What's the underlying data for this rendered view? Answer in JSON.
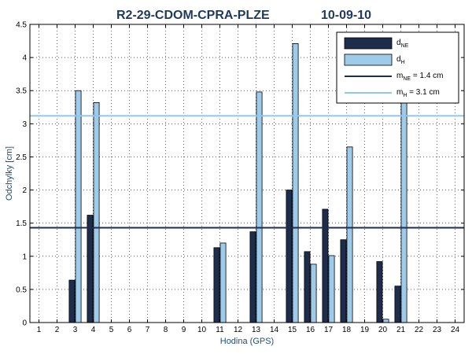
{
  "chart_data": {
    "type": "bar",
    "title": "R2-29-CDOM-CPRA-PLZE",
    "date": "10-09-10",
    "xlabel": "Hodina (GPS)",
    "ylabel": "Odchylky [cm]",
    "ylim": [
      0,
      4.5
    ],
    "yticks": [
      "0",
      "0.5",
      "1",
      "1.5",
      "2",
      "2.5",
      "3",
      "3.5",
      "4",
      "4.5"
    ],
    "categories": [
      "1",
      "2",
      "3",
      "4",
      "5",
      "6",
      "7",
      "8",
      "9",
      "10",
      "11",
      "12",
      "13",
      "14",
      "15",
      "16",
      "17",
      "18",
      "19",
      "20",
      "21",
      "22",
      "23",
      "24"
    ],
    "grid": true,
    "legend_position": "top-right",
    "series": [
      {
        "name": "d_NE",
        "label_main": "d",
        "label_sub": "NE",
        "color": "#1f2d4d",
        "values": [
          null,
          null,
          0.64,
          1.62,
          null,
          null,
          null,
          null,
          null,
          null,
          1.13,
          null,
          1.37,
          null,
          2.0,
          1.07,
          1.71,
          1.25,
          null,
          0.92,
          0.55,
          null,
          null,
          null
        ]
      },
      {
        "name": "d_H",
        "label_main": "d",
        "label_sub": "H",
        "color": "#9fcbeb",
        "values": [
          null,
          null,
          3.5,
          3.32,
          null,
          null,
          null,
          null,
          null,
          null,
          1.2,
          null,
          3.48,
          null,
          4.21,
          0.88,
          1.01,
          2.65,
          null,
          0.05,
          3.42,
          null,
          null,
          null
        ]
      }
    ],
    "reference_lines": [
      {
        "name": "m_NE = 1.4 cm",
        "label_main": "m",
        "label_sub": "NE",
        "label_rest": " = 1.4 cm",
        "value": 1.43,
        "color": "#1f2d4d"
      },
      {
        "name": "m_H = 3.1 cm",
        "label_main": "m",
        "label_sub": "H",
        "label_rest": " = 3.1 cm",
        "value": 3.12,
        "color": "#8ec8ef"
      }
    ]
  }
}
